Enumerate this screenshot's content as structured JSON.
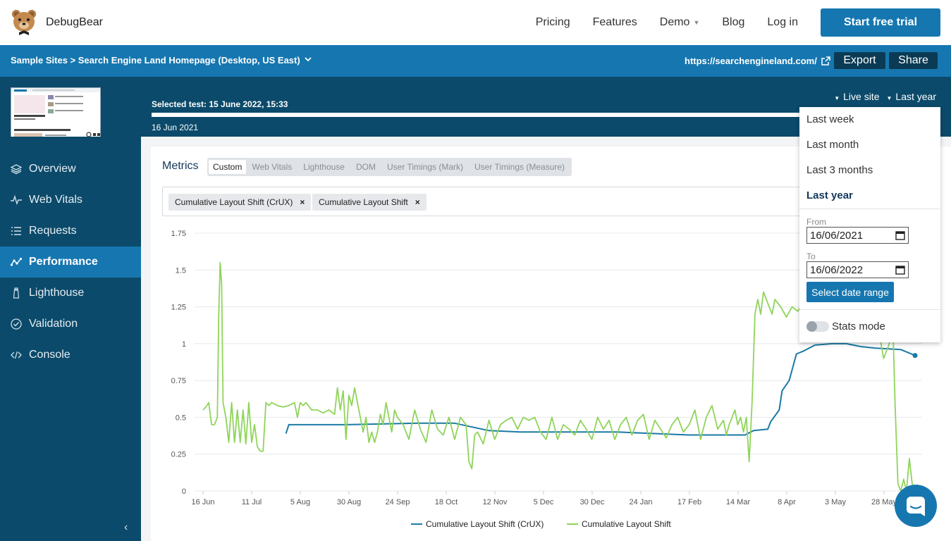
{
  "topnav": {
    "brand": "DebugBear",
    "links": [
      "Pricing",
      "Features",
      "Demo",
      "Blog",
      "Log in"
    ],
    "cta": "Start free trial"
  },
  "projectbar": {
    "breadcrumb": "Sample Sites > Search Engine Land Homepage (Desktop, US East)",
    "url": "https://searchengineland.com/",
    "export": "Export",
    "share": "Share"
  },
  "timeline": {
    "selected": "Selected test: 15 June 2022, 15:33",
    "start": "16 Jun 2021",
    "filters": [
      "Live site",
      "Last year"
    ]
  },
  "sidebar": {
    "items": [
      {
        "label": "Overview",
        "icon": "layers-icon"
      },
      {
        "label": "Web Vitals",
        "icon": "pulse-icon"
      },
      {
        "label": "Requests",
        "icon": "list-icon"
      },
      {
        "label": "Performance",
        "icon": "graph-icon"
      },
      {
        "label": "Lighthouse",
        "icon": "lighthouse-icon"
      },
      {
        "label": "Validation",
        "icon": "check-circle-icon"
      },
      {
        "label": "Console",
        "icon": "code-icon"
      }
    ],
    "active": "Performance",
    "collapse": "‹"
  },
  "metrics": {
    "title": "Metrics",
    "tabs": [
      "Custom",
      "Web Vitals",
      "Lighthouse",
      "DOM",
      "User Timings (Mark)",
      "User Timings (Measure)"
    ],
    "active_tab": "Custom",
    "chips": [
      "Cumulative Layout Shift (CrUX)",
      "Cumulative Layout Shift"
    ]
  },
  "dropdown": {
    "options": [
      "Last week",
      "Last month",
      "Last 3 months",
      "Last year"
    ],
    "selected": "Last year",
    "from_label": "From",
    "from_value": "16/06/2021",
    "to_label": "To",
    "to_value": "16/06/2022",
    "apply": "Select date range",
    "stats_mode": "Stats mode"
  },
  "colors": {
    "brand": "#1677b0",
    "dark": "#0b4a6a",
    "crux_line": "#1a7aa6",
    "cls_line": "#8fd45a"
  },
  "chart_data": {
    "type": "line",
    "x_ticks": [
      "16 Jun",
      "11 Jul",
      "5 Aug",
      "30 Aug",
      "24 Sep",
      "18 Oct",
      "12 Nov",
      "5 Dec",
      "30 Dec",
      "24 Jan",
      "17 Feb",
      "14 Mar",
      "8 Apr",
      "3 May",
      "28 May"
    ],
    "y_ticks": [
      "0",
      "0.25",
      "0.5",
      "0.75",
      "1",
      "1.25",
      "1.5",
      "1.75"
    ],
    "ylim": [
      0,
      1.75
    ],
    "x_range_days": [
      0,
      365
    ],
    "series": [
      {
        "name": "Cumulative Layout Shift (CrUX)",
        "color": "#1a7aa6",
        "x": [
          58,
          60,
          64,
          100,
          150,
          176,
          200,
          222,
          250,
          290,
          340,
          360,
          379,
          385,
          395,
          397,
          403,
          405,
          410,
          415,
          420,
          428,
          440,
          450,
          460,
          470,
          488,
          498
        ],
        "y": [
          0.39,
          0.45,
          0.45,
          0.45,
          0.46,
          0.46,
          0.41,
          0.4,
          0.4,
          0.4,
          0.38,
          0.38,
          0.38,
          0.41,
          0.42,
          0.47,
          0.55,
          0.68,
          0.75,
          0.93,
          0.95,
          0.99,
          1.0,
          1.0,
          0.98,
          0.97,
          0.96,
          0.92
        ]
      },
      {
        "name": "Cumulative Layout Shift",
        "color": "#8fd45a",
        "x": [
          0,
          2,
          4,
          6,
          8,
          10,
          11,
          12,
          13,
          14,
          16,
          18,
          20,
          22,
          24,
          26,
          28,
          30,
          32,
          34,
          36,
          38,
          40,
          42,
          44,
          46,
          48,
          52,
          56,
          60,
          64,
          66,
          68,
          70,
          72,
          76,
          80,
          84,
          88,
          92,
          94,
          96,
          98,
          100,
          102,
          104,
          106,
          108,
          110,
          112,
          114,
          116,
          118,
          120,
          122,
          124,
          126,
          128,
          130,
          132,
          134,
          136,
          140,
          144,
          148,
          152,
          156,
          160,
          164,
          168,
          172,
          176,
          180,
          184,
          186,
          188,
          190,
          192,
          196,
          200,
          204,
          208,
          212,
          216,
          220,
          224,
          228,
          232,
          236,
          240,
          244,
          248,
          252,
          256,
          260,
          264,
          268,
          272,
          276,
          280,
          284,
          288,
          292,
          296,
          300,
          304,
          308,
          312,
          316,
          320,
          324,
          328,
          332,
          336,
          340,
          344,
          348,
          352,
          356,
          360,
          364,
          366,
          368,
          370,
          372,
          374,
          376,
          378,
          380,
          382,
          384,
          386,
          388,
          390,
          392,
          394,
          396,
          398,
          400,
          404,
          408,
          412,
          416,
          420,
          424,
          428,
          432,
          436,
          440,
          444,
          448,
          452,
          456,
          460,
          464,
          468,
          472,
          476,
          480,
          482,
          484,
          486,
          488,
          490,
          492,
          494,
          496,
          498
        ],
        "y": [
          0.55,
          0.57,
          0.6,
          0.45,
          0.45,
          0.5,
          1.2,
          1.55,
          1.4,
          0.6,
          0.5,
          0.33,
          0.6,
          0.33,
          0.55,
          0.33,
          0.55,
          0.32,
          0.6,
          0.33,
          0.45,
          0.3,
          0.27,
          0.27,
          0.6,
          0.58,
          0.6,
          0.58,
          0.57,
          0.58,
          0.6,
          0.5,
          0.6,
          0.58,
          0.6,
          0.55,
          0.55,
          0.53,
          0.55,
          0.52,
          0.7,
          0.55,
          0.68,
          0.35,
          0.65,
          0.58,
          0.7,
          0.6,
          0.5,
          0.4,
          0.5,
          0.33,
          0.4,
          0.33,
          0.4,
          0.52,
          0.45,
          0.6,
          0.5,
          0.4,
          0.55,
          0.5,
          0.45,
          0.35,
          0.55,
          0.42,
          0.33,
          0.55,
          0.42,
          0.38,
          0.5,
          0.35,
          0.5,
          0.45,
          0.2,
          0.15,
          0.38,
          0.4,
          0.32,
          0.48,
          0.35,
          0.45,
          0.48,
          0.5,
          0.42,
          0.5,
          0.48,
          0.5,
          0.4,
          0.35,
          0.5,
          0.35,
          0.45,
          0.42,
          0.38,
          0.48,
          0.42,
          0.35,
          0.5,
          0.42,
          0.48,
          0.35,
          0.45,
          0.5,
          0.38,
          0.48,
          0.52,
          0.35,
          0.48,
          0.42,
          0.36,
          0.45,
          0.5,
          0.4,
          0.45,
          0.55,
          0.35,
          0.5,
          0.58,
          0.42,
          0.48,
          0.38,
          0.45,
          0.5,
          0.55,
          0.45,
          0.5,
          0.4,
          0.5,
          0.2,
          0.6,
          1.2,
          1.3,
          1.2,
          1.35,
          1.3,
          1.25,
          1.2,
          1.3,
          1.25,
          1.18,
          1.25,
          1.22,
          1.28,
          1.3,
          1.25,
          1.3,
          1.1,
          1.1,
          1.1,
          1.15,
          1.2,
          1.15,
          1.12,
          1.18,
          1.15,
          1.12,
          0.9,
          1.0,
          1.3,
          0.6,
          0.05,
          0.0,
          0.08,
          0.0,
          0.22,
          0.05,
          0.0
        ],
        "x_offset_days": 0
      }
    ]
  }
}
